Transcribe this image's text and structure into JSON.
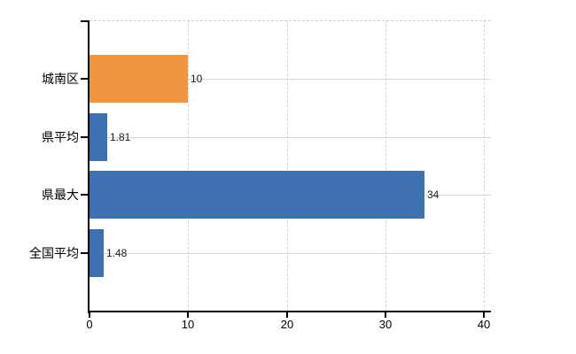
{
  "chart_data": {
    "type": "bar",
    "orientation": "horizontal",
    "title": "",
    "xlabel": "",
    "ylabel": "",
    "categories": [
      "城南区",
      "県平均",
      "県最大",
      "全国平均"
    ],
    "values": [
      10,
      1.81,
      34,
      1.48
    ],
    "value_labels": [
      "10",
      "1.81",
      "34",
      "1.48"
    ],
    "bar_colors": [
      "#f0963e",
      "#3e70b2",
      "#3e70b2",
      "#3e70b2"
    ],
    "xlim": [
      0,
      40
    ],
    "x_tick_values": [
      0,
      10,
      20,
      30,
      40
    ],
    "x_tick_labels": [
      "0",
      "10",
      "20",
      "30",
      "40"
    ],
    "grid": {
      "vertical_style": "dashed",
      "horizontal_style": "solid",
      "top_border_style": "dashed"
    },
    "legend_position": "none",
    "colors": {
      "axis": "#000000",
      "grid_vertical": "#d7d7d7",
      "grid_horizontal": "#d5dad5",
      "value_text": "#1a1a1a",
      "label_text": "#000000",
      "background": "#ffffff"
    }
  }
}
